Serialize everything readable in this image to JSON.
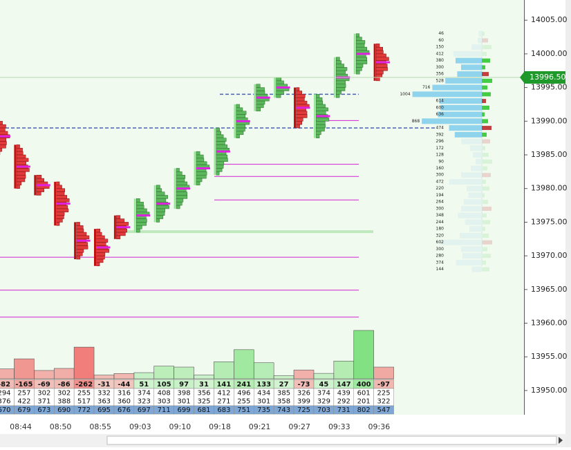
{
  "chart_data": {
    "type": "footprint",
    "ylim": [
      13946.4,
      14008
    ],
    "yticks": [
      {
        "value": 14005,
        "label": "14005.00"
      },
      {
        "value": 14000,
        "label": "14000.00"
      },
      {
        "value": 13995,
        "label": "13995.00"
      },
      {
        "value": 13990,
        "label": "13990.00"
      },
      {
        "value": 13985,
        "label": "13985.00"
      },
      {
        "value": 13980,
        "label": "13980.00"
      },
      {
        "value": 13975,
        "label": "13975.00"
      },
      {
        "value": 13970,
        "label": "13970.00"
      },
      {
        "value": 13965,
        "label": "13965.00"
      },
      {
        "value": 13960,
        "label": "13960.00"
      },
      {
        "value": 13955,
        "label": "13955.00"
      },
      {
        "value": 13950,
        "label": "13950.00"
      }
    ],
    "last_price": {
      "value": 13996.5,
      "label": "13996.50"
    },
    "times": [
      "08:44",
      "08:50",
      "08:55",
      "09:03",
      "09:10",
      "09:18",
      "09:21",
      "09:27",
      "09:33",
      "09:36"
    ],
    "columns": {
      "delta": [
        -82,
        -165,
        -69,
        -86,
        -262,
        -31,
        -44,
        51,
        105,
        97,
        31,
        141,
        241,
        133,
        27,
        -73,
        45,
        147,
        400,
        -97
      ],
      "buy": [
        294,
        257,
        302,
        302,
        255,
        332,
        316,
        374,
        408,
        398,
        356,
        412,
        496,
        434,
        385,
        326,
        374,
        439,
        601,
        225
      ],
      "sell": [
        376,
        422,
        371,
        388,
        517,
        363,
        360,
        323,
        303,
        301,
        325,
        271,
        255,
        301,
        358,
        399,
        329,
        292,
        201,
        322
      ],
      "total": [
        670,
        679,
        673,
        690,
        772,
        695,
        676,
        697,
        711,
        699,
        681,
        683,
        751,
        735,
        743,
        725,
        703,
        731,
        802,
        547
      ],
      "high": [
        13990.5,
        13986.5,
        13982,
        13981,
        13975,
        13974,
        13976,
        13978.5,
        13980.5,
        13983,
        13985.5,
        13989,
        13992.5,
        13995.5,
        13996.5,
        13995,
        13994,
        13999.5,
        14003,
        14001.5
      ],
      "low": [
        13985,
        13980,
        13979,
        13974.5,
        13969.5,
        13968.5,
        13972.5,
        13973.5,
        13975,
        13977,
        13980.5,
        13982,
        13987.5,
        13991.5,
        13993.5,
        13989,
        13987.5,
        13993.5,
        13997,
        13996
      ]
    },
    "poc_lines": [
      13983.6,
      13981.8,
      13978.3,
      13969.8,
      13964.9,
      13960.9,
      13990.1
    ],
    "dashed_lines": [
      13994,
      13989
    ],
    "highlight_line": 13973.6,
    "profile": {
      "prices": [
        14003,
        14002,
        14001,
        14000,
        13999,
        13998,
        13997,
        13996,
        13995,
        13994,
        13993,
        13992,
        13991,
        13990,
        13989,
        13988,
        13987,
        13986,
        13985,
        13984,
        13983,
        13982,
        13981,
        13980,
        13979,
        13978,
        13977,
        13976,
        13975,
        13974,
        13973,
        13972,
        13971,
        13970,
        13969,
        13968
      ],
      "volumes": [
        46,
        60,
        150,
        412,
        380,
        300,
        356,
        528,
        716,
        1004,
        614,
        600,
        636,
        868,
        474,
        392,
        296,
        172,
        128,
        90,
        160,
        300,
        472,
        220,
        194,
        264,
        300,
        348,
        244,
        180,
        320,
        602,
        300,
        280,
        374,
        144
      ]
    }
  }
}
